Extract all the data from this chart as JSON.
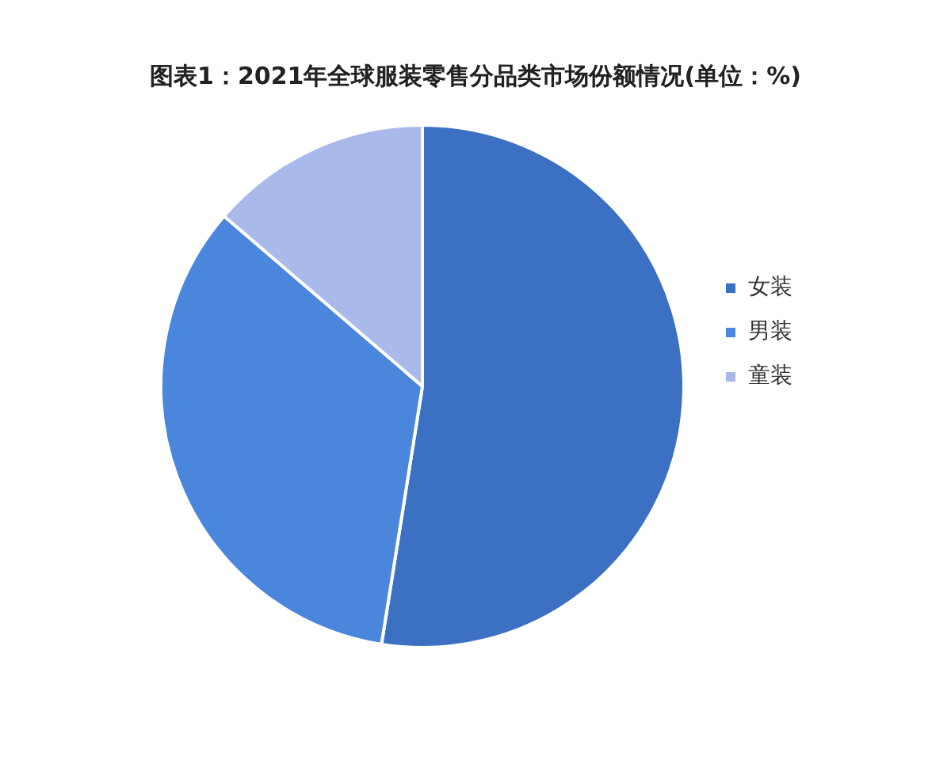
{
  "chart_data": {
    "type": "pie",
    "title": "图表1：2021年全球服装零售分品类市场份额情况(单位：%)",
    "categories": [
      "女装",
      "男装",
      "童装"
    ],
    "values": [
      52.5,
      33.8,
      13.7
    ],
    "colors": [
      "#3b70c2",
      "#4a86dc",
      "#a9b9ea"
    ],
    "legend": "right"
  }
}
